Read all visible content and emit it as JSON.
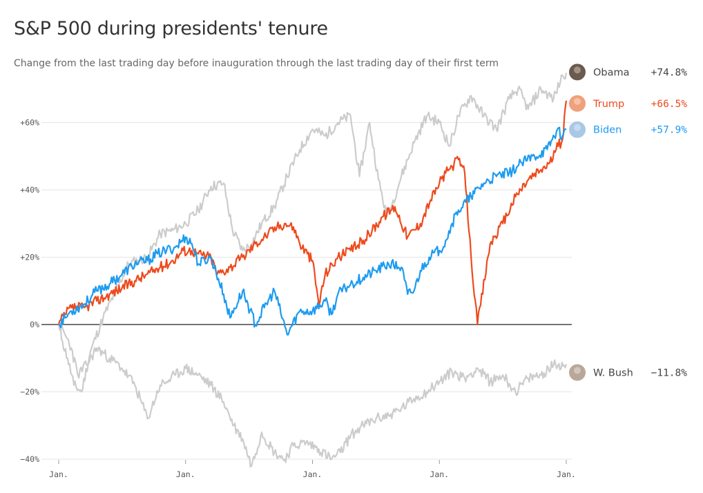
{
  "title": "S&P 500 during presidents' tenure",
  "subtitle": "Change from the last trading day before inauguration through the last trading day of their first term",
  "colors": {
    "Obama": "#cccccc",
    "W. Bush": "#cccccc",
    "Trump": "#ee4a1d",
    "Biden": "#1d9bf0",
    "grid": "#e5e5e5",
    "zero": "#222222"
  },
  "chart_data": {
    "type": "line",
    "ylim": [
      -40,
      80
    ],
    "y_ticks": [
      60,
      40,
      20,
      0,
      -20,
      -40
    ],
    "y_tick_labels": [
      "+60%",
      "+40%",
      "+20%",
      "0%",
      "−20%",
      "−40%"
    ],
    "x_range": [
      0,
      4
    ],
    "x_ticks": [
      0,
      1,
      2,
      3,
      4
    ],
    "x_tick_labels": [
      "Jan.",
      "Jan.",
      "Jan.",
      "Jan.",
      "Jan."
    ],
    "series": [
      {
        "name": "Obama",
        "final_label": "+74.8%",
        "x": [
          0,
          0.03,
          0.07,
          0.12,
          0.18,
          0.25,
          0.35,
          0.45,
          0.55,
          0.62,
          0.7,
          0.8,
          0.9,
          1.0,
          1.1,
          1.2,
          1.3,
          1.37,
          1.45,
          1.52,
          1.6,
          1.7,
          1.8,
          1.9,
          2.0,
          2.1,
          2.2,
          2.3,
          2.37,
          2.45,
          2.52,
          2.58,
          2.62,
          2.7,
          2.8,
          2.9,
          3.0,
          3.08,
          3.15,
          3.25,
          3.35,
          3.45,
          3.55,
          3.62,
          3.7,
          3.8,
          3.9,
          3.97,
          4.0
        ],
        "y": [
          0,
          -5,
          -10,
          -18,
          -20,
          -8,
          2,
          10,
          18,
          19,
          20,
          27,
          28,
          30,
          34,
          41,
          42,
          28,
          22,
          24,
          30,
          35,
          44,
          52,
          58,
          56,
          60,
          62,
          44,
          60,
          43,
          33,
          35,
          44,
          54,
          62,
          60,
          53,
          62,
          68,
          62,
          58,
          67,
          70,
          64,
          70,
          67,
          74,
          74.8
        ]
      },
      {
        "name": "Trump",
        "final_label": "+66.5%",
        "x": [
          0,
          0.05,
          0.1,
          0.2,
          0.3,
          0.4,
          0.5,
          0.6,
          0.7,
          0.8,
          0.9,
          0.98,
          1.05,
          1.1,
          1.2,
          1.25,
          1.35,
          1.45,
          1.55,
          1.65,
          1.72,
          1.78,
          1.85,
          1.9,
          1.96,
          2.0,
          2.05,
          2.1,
          2.2,
          2.3,
          2.4,
          2.47,
          2.55,
          2.65,
          2.75,
          2.85,
          2.93,
          3.0,
          3.05,
          3.1,
          3.15,
          3.2,
          3.25,
          3.3,
          3.4,
          3.5,
          3.6,
          3.7,
          3.8,
          3.87,
          3.92,
          3.97,
          4.0
        ],
        "y": [
          0,
          3,
          5,
          5,
          7,
          9,
          11,
          13,
          15,
          17,
          19,
          22,
          22,
          21,
          20,
          15,
          17,
          20,
          24,
          27,
          29,
          30,
          29,
          24,
          21,
          19,
          6,
          15,
          20,
          22,
          25,
          28,
          32,
          35,
          26,
          30,
          37,
          42,
          45,
          47,
          49,
          45,
          20,
          0,
          24,
          30,
          38,
          43,
          46,
          48,
          52,
          55,
          66.5
        ]
      },
      {
        "name": "Biden",
        "final_label": "+57.9%",
        "x": [
          0,
          0.05,
          0.1,
          0.2,
          0.3,
          0.4,
          0.5,
          0.6,
          0.7,
          0.78,
          0.85,
          0.92,
          1.0,
          1.05,
          1.1,
          1.2,
          1.3,
          1.35,
          1.45,
          1.55,
          1.62,
          1.7,
          1.8,
          1.9,
          2.0,
          2.1,
          2.15,
          2.2,
          2.3,
          2.4,
          2.5,
          2.6,
          2.7,
          2.75,
          2.8,
          2.85,
          2.92,
          3.0,
          3.05,
          3.1,
          3.15,
          3.25,
          3.35,
          3.45,
          3.55,
          3.65,
          3.75,
          3.85,
          3.93,
          3.97,
          4.0
        ],
        "y": [
          0,
          2,
          4,
          6,
          10,
          12,
          15,
          18,
          19,
          21,
          22,
          23,
          26,
          24,
          18,
          20,
          9,
          2,
          10,
          0,
          5,
          10,
          -3,
          4,
          4,
          7,
          3,
          9,
          12,
          14,
          16,
          18,
          17,
          9,
          10,
          16,
          20,
          22,
          25,
          30,
          34,
          38,
          42,
          44,
          45,
          48,
          50,
          52,
          58,
          56,
          57.9
        ]
      },
      {
        "name": "W. Bush",
        "final_label": "−11.8%",
        "x": [
          0,
          0.05,
          0.1,
          0.15,
          0.22,
          0.3,
          0.4,
          0.5,
          0.6,
          0.7,
          0.8,
          0.85,
          0.92,
          1.0,
          1.1,
          1.2,
          1.3,
          1.38,
          1.45,
          1.52,
          1.6,
          1.7,
          1.78,
          1.85,
          1.95,
          2.05,
          2.15,
          2.22,
          2.3,
          2.4,
          2.5,
          2.6,
          2.7,
          2.8,
          2.9,
          3.0,
          3.1,
          3.2,
          3.3,
          3.4,
          3.5,
          3.6,
          3.7,
          3.8,
          3.9,
          4.0
        ],
        "y": [
          0,
          -3,
          -7,
          -15,
          -12,
          -7,
          -10,
          -13,
          -18,
          -28,
          -18,
          -17,
          -15,
          -13,
          -15,
          -18,
          -23,
          -30,
          -34,
          -42,
          -32,
          -38,
          -40,
          -36,
          -35,
          -37,
          -40,
          -38,
          -33,
          -30,
          -28,
          -27,
          -25,
          -22,
          -20,
          -17,
          -14,
          -16,
          -13,
          -17,
          -15,
          -20,
          -16,
          -15,
          -12,
          -11.8
        ]
      }
    ]
  }
}
